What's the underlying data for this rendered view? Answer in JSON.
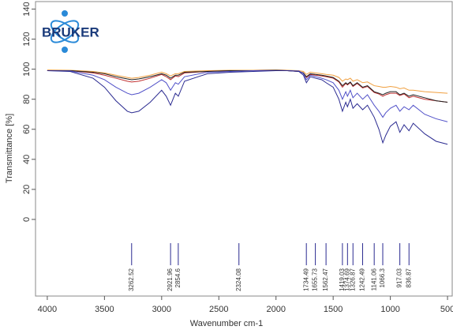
{
  "chart_data": {
    "type": "line",
    "logo": "BRUKER",
    "xlabel": "Wavenumber cm-1",
    "ylabel": "Transmittance [%]",
    "xlim": [
      4103,
      459
    ],
    "ylim": [
      -51,
      145
    ],
    "xticks": [
      4000,
      3500,
      3000,
      2500,
      2000,
      1500,
      1000,
      500
    ],
    "yticks": [
      0,
      20,
      40,
      60,
      80,
      100,
      120,
      140
    ],
    "peak_color": "#2a2a90",
    "peaks": [
      3262.52,
      2921.96,
      2854.6,
      2324.08,
      1734.49,
      1655.73,
      1562.47,
      1419.03,
      1374.69,
      1326.87,
      1242.49,
      1141.06,
      1066.3,
      917.03,
      836.87
    ],
    "x": [
      4000,
      3800,
      3600,
      3500,
      3400,
      3300,
      3262,
      3200,
      3100,
      3000,
      2960,
      2922,
      2880,
      2854,
      2800,
      2600,
      2400,
      2200,
      2000,
      1900,
      1800,
      1760,
      1734,
      1700,
      1655,
      1600,
      1562,
      1500,
      1450,
      1419,
      1390,
      1375,
      1350,
      1327,
      1290,
      1242,
      1200,
      1141,
      1100,
      1066,
      1040,
      1000,
      950,
      917,
      880,
      837,
      800,
      700,
      600,
      500
    ],
    "series": [
      {
        "color": "#f0a040",
        "values": [
          99.5,
          99.3,
          98.5,
          97.5,
          96,
          94.5,
          94,
          94.5,
          96,
          98,
          97,
          95.5,
          97,
          97,
          98.5,
          99,
          99.3,
          99.3,
          99.5,
          99.3,
          99,
          98.5,
          96.5,
          98,
          97.5,
          97,
          96.5,
          96,
          94.5,
          92,
          93.5,
          93,
          94,
          92,
          93,
          91,
          91.5,
          89,
          88.5,
          88,
          88,
          88.5,
          88,
          87,
          87.5,
          86,
          86,
          85,
          84.5,
          84
        ]
      },
      {
        "color": "#c03030",
        "values": [
          99,
          99,
          97.5,
          96,
          94,
          92,
          91.5,
          92,
          94,
          96.5,
          95,
          93,
          95.5,
          95,
          97.5,
          98.5,
          99,
          99,
          99.3,
          99,
          98.5,
          97.5,
          94.5,
          96.5,
          96,
          95.5,
          95,
          94,
          91.5,
          88,
          90.5,
          89.5,
          91,
          88.5,
          90.5,
          87.5,
          88.5,
          84.5,
          83.5,
          82,
          83,
          84,
          84,
          82.5,
          83.5,
          81,
          82,
          80,
          79,
          78
        ]
      },
      {
        "color": "#202020",
        "values": [
          99,
          99,
          98,
          97,
          95,
          93.5,
          93,
          93.5,
          95,
          97,
          96,
          94,
          96,
          96,
          98,
          98.5,
          99,
          99,
          99.3,
          99,
          98.5,
          97.5,
          95,
          97,
          96.5,
          96,
          95.5,
          94.5,
          92,
          89,
          91,
          90,
          91.5,
          89,
          91,
          88,
          89,
          85,
          84,
          83,
          84,
          85,
          85,
          83,
          84,
          82,
          83,
          81,
          79,
          78
        ]
      },
      {
        "color": "#5050c8",
        "values": [
          99,
          98.8,
          96,
          93,
          88,
          84,
          83,
          84,
          88,
          93,
          91,
          86,
          91,
          90,
          95,
          98,
          98.5,
          99,
          99,
          99,
          98.8,
          97,
          93,
          96,
          95,
          94,
          93,
          91,
          86,
          80,
          85,
          82,
          86,
          81,
          84,
          80,
          83,
          76,
          72,
          68,
          71,
          74,
          76,
          72,
          75,
          73,
          76,
          70,
          67,
          65
        ]
      },
      {
        "color": "#2a2a90",
        "values": [
          99,
          98.5,
          94,
          88,
          79,
          72,
          71,
          72,
          78,
          86,
          82,
          76,
          84,
          82,
          92,
          97,
          98,
          98.5,
          99,
          99,
          98.5,
          96,
          91,
          95,
          94,
          93,
          91,
          88,
          80,
          72,
          78,
          75,
          80,
          74,
          77,
          73,
          76,
          68,
          60,
          51,
          56,
          62,
          65,
          58,
          63,
          59,
          64,
          57,
          52,
          50
        ]
      }
    ]
  }
}
